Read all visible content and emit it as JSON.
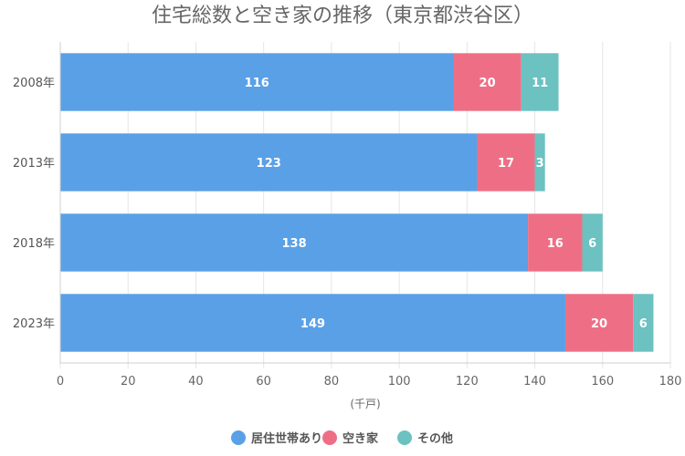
{
  "chart_data": {
    "type": "bar",
    "orientation": "horizontal",
    "stacked": true,
    "title": "住宅総数と空き家の推移（東京都渋谷区）",
    "xlabel": "(千戸)",
    "ylabel": "",
    "categories": [
      "2008年",
      "2013年",
      "2018年",
      "2023年"
    ],
    "series": [
      {
        "name": "居住世帯あり",
        "values": [
          116,
          123,
          138,
          149
        ],
        "color": "#5aa0e6"
      },
      {
        "name": "空き家",
        "values": [
          20,
          17,
          16,
          20
        ],
        "color": "#ee6f85"
      },
      {
        "name": "その他",
        "values": [
          11,
          3,
          6,
          6
        ],
        "color": "#6cc1c1"
      }
    ],
    "xlim": [
      0,
      180
    ],
    "x_ticks": [
      0,
      20,
      40,
      60,
      80,
      100,
      120,
      140,
      160,
      180
    ],
    "grid": true,
    "legend_position": "bottom",
    "data_labels": true
  }
}
